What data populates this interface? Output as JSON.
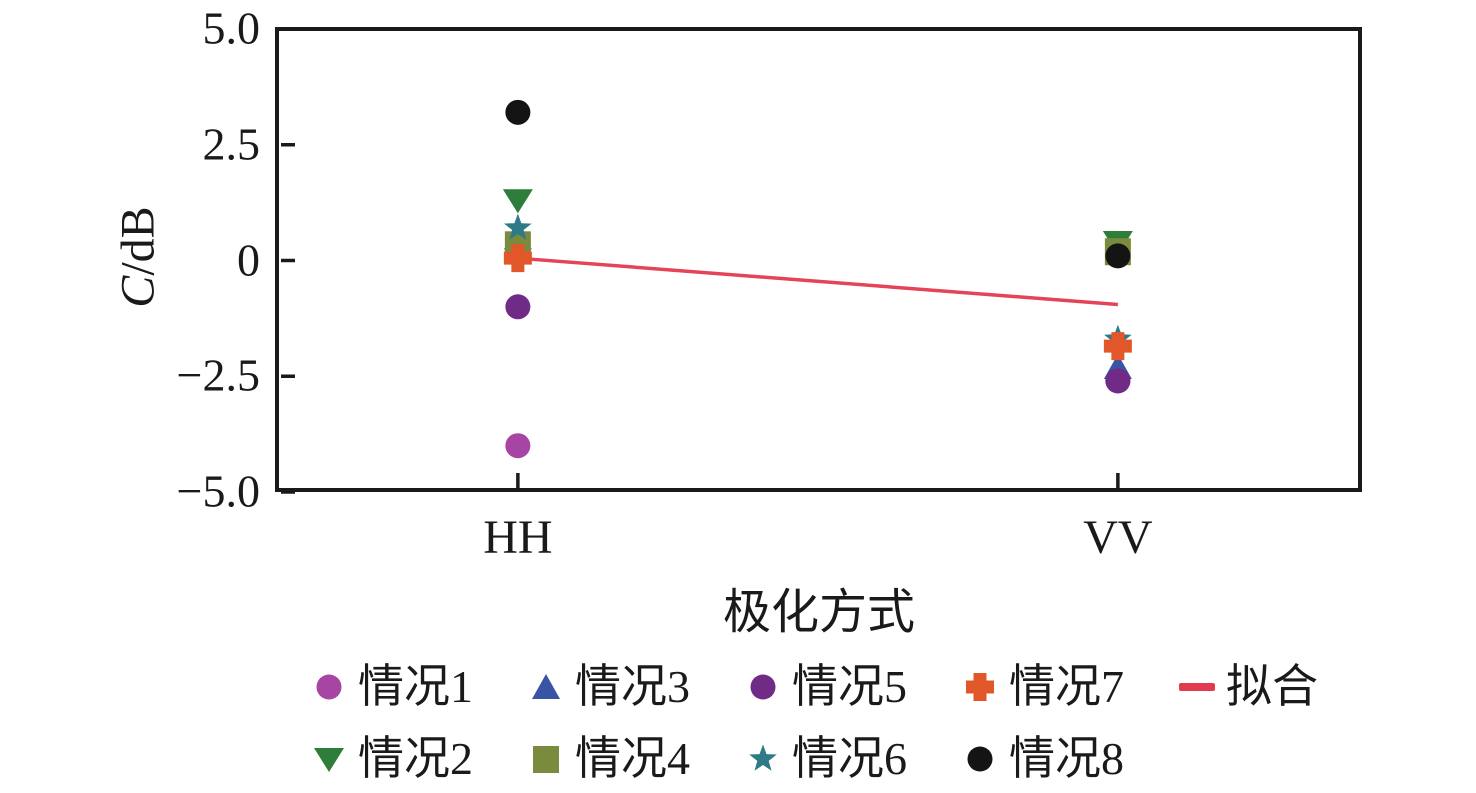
{
  "figure": {
    "background": "#ffffff",
    "frame_color": "#1a1a1a",
    "text_color": "#1a1a1a"
  },
  "chart_data": {
    "type": "scatter",
    "title": "",
    "xlabel": "极化方式",
    "ylabel": "C/dB",
    "ylabel_italic": "C",
    "ylabel_unit": "/dB",
    "categories": [
      "HH",
      "VV"
    ],
    "ylim": [
      -5.0,
      5.0
    ],
    "grid": false,
    "legend_position": "below",
    "yticks": [
      {
        "value": 5.0,
        "label": "5.0"
      },
      {
        "value": 2.5,
        "label": "2.5"
      },
      {
        "value": 0,
        "label": "0"
      },
      {
        "value": -2.5,
        "label": "−2.5"
      },
      {
        "value": -5.0,
        "label": "−5.0"
      }
    ],
    "series": [
      {
        "name": "情况1",
        "marker": "circle",
        "color": "#a645a3",
        "values": {
          "HH": -4.0,
          "VV": -2.6
        }
      },
      {
        "name": "情况2",
        "marker": "triangle-down",
        "color": "#2e7d3a",
        "values": {
          "HH": 1.3,
          "VV": 0.4
        }
      },
      {
        "name": "情况3",
        "marker": "triangle-up",
        "color": "#3a54a5",
        "values": {
          "HH": 0.5,
          "VV": -2.3
        }
      },
      {
        "name": "情况4",
        "marker": "square",
        "color": "#7a8b3e",
        "values": {
          "HH": 0.35,
          "VV": 0.2
        }
      },
      {
        "name": "情况5",
        "marker": "circle",
        "color": "#6f2b86",
        "values": {
          "HH": -1.0,
          "VV": -2.6
        }
      },
      {
        "name": "情况6",
        "marker": "star",
        "color": "#2e7a86",
        "values": {
          "HH": 0.7,
          "VV": -1.7
        }
      },
      {
        "name": "情况7",
        "marker": "plus",
        "color": "#e1572a",
        "values": {
          "HH": 0.05,
          "VV": -1.85
        }
      },
      {
        "name": "情况8",
        "marker": "circle",
        "color": "#141414",
        "values": {
          "HH": 3.2,
          "VV": 0.1
        }
      }
    ],
    "fit": {
      "name": "拟合",
      "color": "#e23b50",
      "values": {
        "HH": 0.05,
        "VV": -0.95
      }
    },
    "legend_columns": [
      [
        0,
        1
      ],
      [
        2,
        3
      ],
      [
        4,
        5
      ],
      [
        6,
        7
      ],
      [
        "fit"
      ]
    ]
  }
}
